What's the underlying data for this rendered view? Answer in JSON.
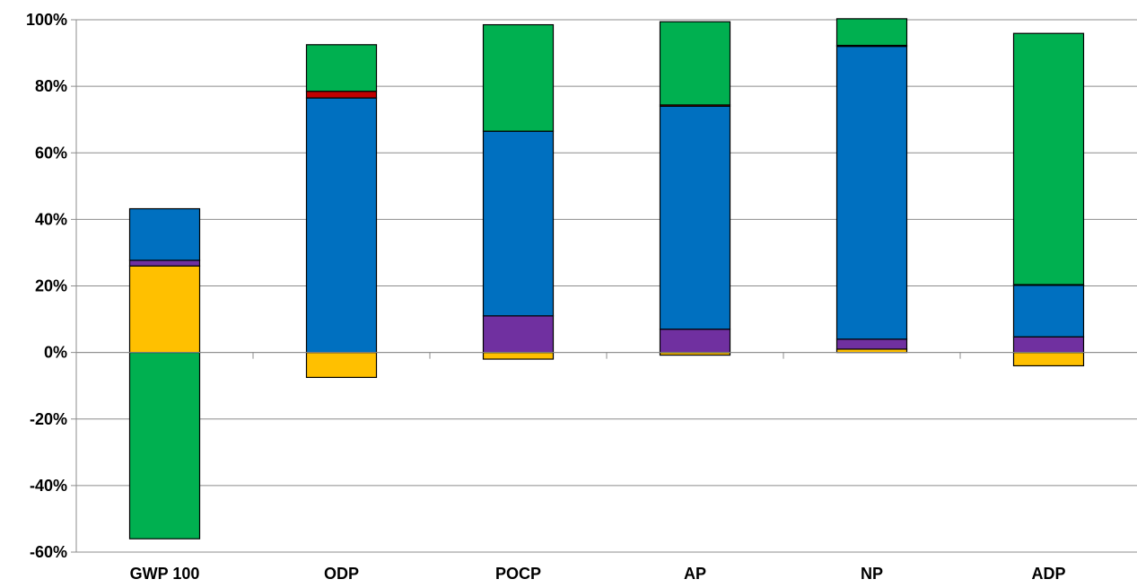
{
  "chart_data": {
    "type": "bar",
    "stacked": true,
    "categories": [
      "GWP 100",
      "ODP",
      "POCP",
      "AP",
      "NP",
      "ADP"
    ],
    "ylim": [
      -0.6,
      1.0
    ],
    "y_ticks": [
      1.0,
      0.8,
      0.6,
      0.4,
      0.2,
      0.0,
      -0.2,
      -0.4,
      -0.6
    ],
    "y_tick_labels": [
      "100%",
      "80%",
      "60%",
      "40%",
      "20%",
      "0%",
      "-20%",
      "-40%",
      "-60%"
    ],
    "grid": true,
    "legend": "none",
    "series": [
      {
        "color": "#FFC000",
        "values": [
          0.26,
          -0.075,
          -0.02,
          -0.008,
          0.01,
          -0.04
        ]
      },
      {
        "color": "#7030A0",
        "values": [
          0.017,
          0.0,
          0.11,
          0.07,
          0.03,
          0.047
        ]
      },
      {
        "color": "#0070C0",
        "values": [
          0.155,
          0.765,
          0.555,
          0.67,
          0.88,
          0.155
        ]
      },
      {
        "color": "#C00000",
        "values": [
          0.0,
          0.02,
          0.0,
          0.004,
          0.003,
          0.002
        ]
      },
      {
        "color": "#00B050",
        "values": [
          -0.56,
          0.14,
          0.32,
          0.25,
          0.08,
          0.755
        ]
      }
    ]
  }
}
